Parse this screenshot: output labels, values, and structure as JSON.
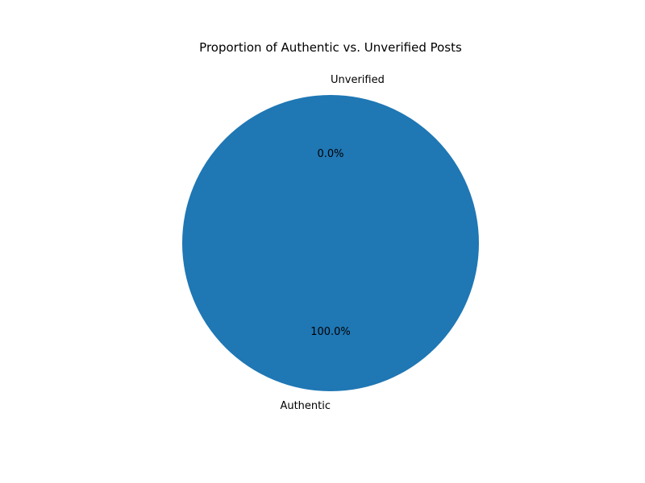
{
  "chart_data": {
    "type": "pie",
    "title": "Proportion of Authentic vs. Unverified Posts",
    "labels": [
      "Authentic",
      "Unverified"
    ],
    "values": [
      100.0,
      0.0
    ],
    "autopct_labels": [
      "100.0%",
      "0.0%"
    ],
    "colors": [
      "#1f77b4",
      "#ff7f0e"
    ],
    "start_angle_deg": 90,
    "counterclockwise": true,
    "legend": "none"
  }
}
